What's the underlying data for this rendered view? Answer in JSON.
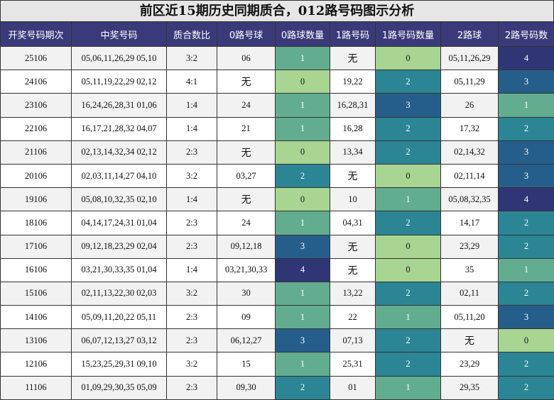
{
  "title": "前区近15期历史同期质合，012路号码图示分析",
  "headers": [
    "开奖号码期次",
    "中奖号码",
    "质合数比",
    "0路号球",
    "0路球数量",
    "1路号码",
    "1路号码数量",
    "2路球",
    "2路号码数"
  ],
  "colors": {
    "0": "#a8d591",
    "1": "#62ad90",
    "2": "#2b8595",
    "3": "#265e8b",
    "4": "#303675"
  },
  "rows": [
    {
      "issue": "25106",
      "numbers": "05,06,11,26,29 05,10",
      "ratio": "3:2",
      "r0": "06",
      "c0": "1",
      "r1": "无",
      "c1": "0",
      "r2": "05,11,26,29",
      "c2": "4"
    },
    {
      "issue": "24106",
      "numbers": "05,11,19,22,29 02,12",
      "ratio": "4:1",
      "r0": "无",
      "c0": "0",
      "r1": "19,22",
      "c1": "2",
      "r2": "05,11,29",
      "c2": "3"
    },
    {
      "issue": "23106",
      "numbers": "16,24,26,28,31 01,06",
      "ratio": "1:4",
      "r0": "24",
      "c0": "1",
      "r1": "16,28,31",
      "c1": "3",
      "r2": "26",
      "c2": "1"
    },
    {
      "issue": "22106",
      "numbers": "16,17,21,28,32 04,07",
      "ratio": "1:4",
      "r0": "21",
      "c0": "1",
      "r1": "16,28",
      "c1": "2",
      "r2": "17,32",
      "c2": "2"
    },
    {
      "issue": "21106",
      "numbers": "02,13,14,32,34 02,12",
      "ratio": "2:3",
      "r0": "无",
      "c0": "0",
      "r1": "13,34",
      "c1": "2",
      "r2": "02,14,32",
      "c2": "3"
    },
    {
      "issue": "20106",
      "numbers": "02,03,11,14,27 04,10",
      "ratio": "3:2",
      "r0": "03,27",
      "c0": "2",
      "r1": "无",
      "c1": "0",
      "r2": "02,11,14",
      "c2": "3"
    },
    {
      "issue": "19106",
      "numbers": "05,08,10,32,35 02,10",
      "ratio": "1:4",
      "r0": "无",
      "c0": "0",
      "r1": "10",
      "c1": "1",
      "r2": "05,08,32,35",
      "c2": "4"
    },
    {
      "issue": "18106",
      "numbers": "04,14,17,24,31 01,04",
      "ratio": "2:3",
      "r0": "24",
      "c0": "1",
      "r1": "04,31",
      "c1": "2",
      "r2": "14,17",
      "c2": "2"
    },
    {
      "issue": "17106",
      "numbers": "09,12,18,23,29 02,04",
      "ratio": "2:3",
      "r0": "09,12,18",
      "c0": "3",
      "r1": "无",
      "c1": "0",
      "r2": "23,29",
      "c2": "2"
    },
    {
      "issue": "16106",
      "numbers": "03,21,30,33,35 01,04",
      "ratio": "1:4",
      "r0": "03,21,30,33",
      "c0": "4",
      "r1": "无",
      "c1": "0",
      "r2": "35",
      "c2": "1"
    },
    {
      "issue": "15106",
      "numbers": "02,11,13,22,30 02,03",
      "ratio": "3:2",
      "r0": "30",
      "c0": "1",
      "r1": "13,22",
      "c1": "2",
      "r2": "02,11",
      "c2": "2"
    },
    {
      "issue": "14106",
      "numbers": "05,09,11,20,22 05,11",
      "ratio": "2:3",
      "r0": "09",
      "c0": "1",
      "r1": "22",
      "c1": "1",
      "r2": "05,11,20",
      "c2": "3"
    },
    {
      "issue": "13106",
      "numbers": "06,07,12,13,27 03,12",
      "ratio": "2:3",
      "r0": "06,12,27",
      "c0": "3",
      "r1": "07,13",
      "c1": "2",
      "r2": "无",
      "c2": "0"
    },
    {
      "issue": "12106",
      "numbers": "15,23,25,29,31 09,10",
      "ratio": "3:2",
      "r0": "15",
      "c0": "1",
      "r1": "25,31",
      "c1": "2",
      "r2": "23,29",
      "c2": "2"
    },
    {
      "issue": "11106",
      "numbers": "01,09,29,30,35 05,09",
      "ratio": "2:3",
      "r0": "09,30",
      "c0": "2",
      "r1": "01",
      "c1": "1",
      "r2": "29,35",
      "c2": "2"
    }
  ]
}
